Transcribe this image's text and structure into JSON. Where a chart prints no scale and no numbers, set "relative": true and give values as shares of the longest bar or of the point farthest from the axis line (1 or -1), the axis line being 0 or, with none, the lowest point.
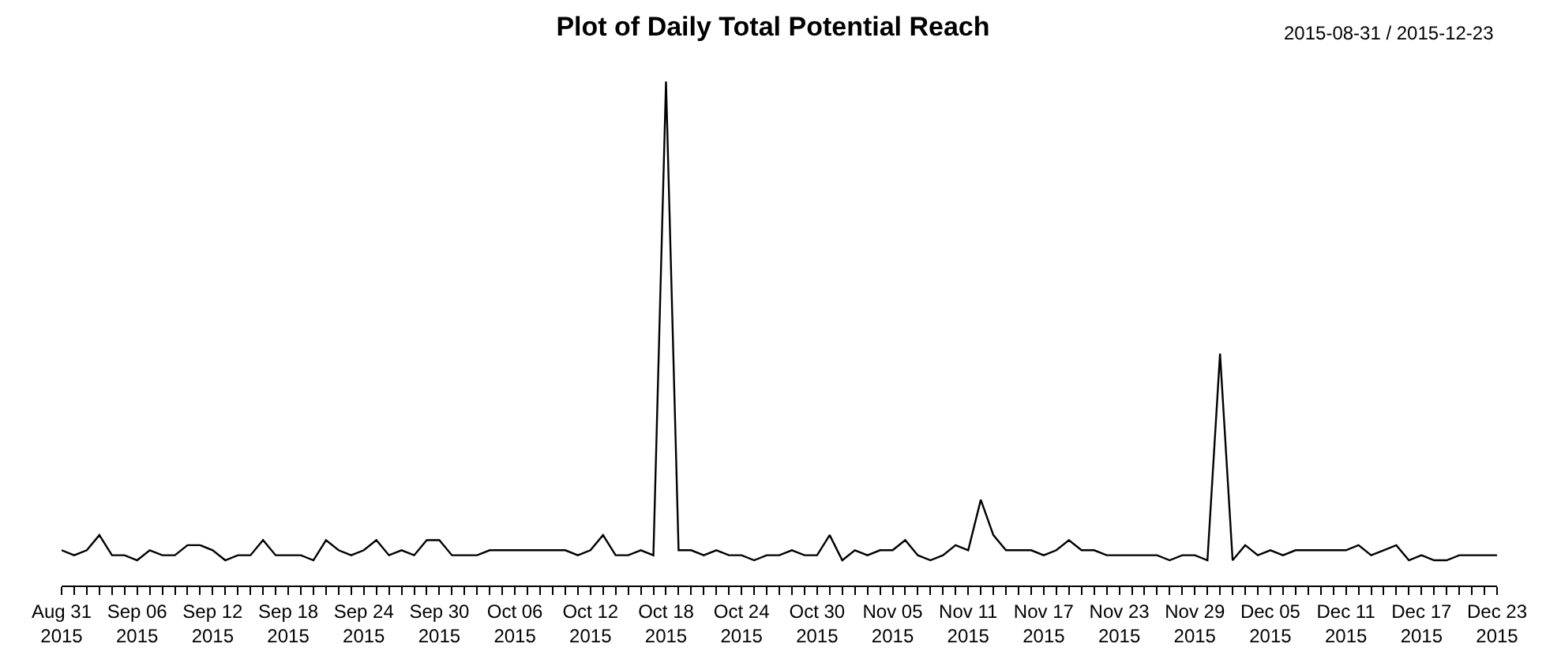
{
  "chart_data": {
    "type": "line",
    "title": "Plot of Daily Total Potential Reach",
    "annotations": [
      "2015-08-31 / 2015-12-23"
    ],
    "relative": true,
    "legend": false,
    "line_style": "solid",
    "marker": "none",
    "x": [
      "2015-08-31",
      "2015-09-01",
      "2015-09-02",
      "2015-09-03",
      "2015-09-04",
      "2015-09-05",
      "2015-09-06",
      "2015-09-07",
      "2015-09-08",
      "2015-09-09",
      "2015-09-10",
      "2015-09-11",
      "2015-09-12",
      "2015-09-13",
      "2015-09-14",
      "2015-09-15",
      "2015-09-16",
      "2015-09-17",
      "2015-09-18",
      "2015-09-19",
      "2015-09-20",
      "2015-09-21",
      "2015-09-22",
      "2015-09-23",
      "2015-09-24",
      "2015-09-25",
      "2015-09-26",
      "2015-09-27",
      "2015-09-28",
      "2015-09-29",
      "2015-09-30",
      "2015-10-01",
      "2015-10-02",
      "2015-10-03",
      "2015-10-04",
      "2015-10-05",
      "2015-10-06",
      "2015-10-07",
      "2015-10-08",
      "2015-10-09",
      "2015-10-10",
      "2015-10-11",
      "2015-10-12",
      "2015-10-13",
      "2015-10-14",
      "2015-10-15",
      "2015-10-16",
      "2015-10-17",
      "2015-10-18",
      "2015-10-19",
      "2015-10-20",
      "2015-10-21",
      "2015-10-22",
      "2015-10-23",
      "2015-10-24",
      "2015-10-25",
      "2015-10-26",
      "2015-10-27",
      "2015-10-28",
      "2015-10-29",
      "2015-10-30",
      "2015-10-31",
      "2015-11-01",
      "2015-11-02",
      "2015-11-03",
      "2015-11-04",
      "2015-11-05",
      "2015-11-06",
      "2015-11-07",
      "2015-11-08",
      "2015-11-09",
      "2015-11-10",
      "2015-11-11",
      "2015-11-12",
      "2015-11-13",
      "2015-11-14",
      "2015-11-15",
      "2015-11-16",
      "2015-11-17",
      "2015-11-18",
      "2015-11-19",
      "2015-11-20",
      "2015-11-21",
      "2015-11-22",
      "2015-11-23",
      "2015-11-24",
      "2015-11-25",
      "2015-11-26",
      "2015-11-27",
      "2015-11-28",
      "2015-11-29",
      "2015-11-30",
      "2015-12-01",
      "2015-12-02",
      "2015-12-03",
      "2015-12-04",
      "2015-12-05",
      "2015-12-06",
      "2015-12-07",
      "2015-12-08",
      "2015-12-09",
      "2015-12-10",
      "2015-12-11",
      "2015-12-12",
      "2015-12-13",
      "2015-12-14",
      "2015-12-15",
      "2015-12-16",
      "2015-12-17",
      "2015-12-18",
      "2015-12-19",
      "2015-12-20",
      "2015-12-21",
      "2015-12-22",
      "2015-12-23"
    ],
    "series": [
      {
        "color": "#000000",
        "values": [
          0.07,
          0.06,
          0.07,
          0.1,
          0.06,
          0.06,
          0.05,
          0.07,
          0.06,
          0.06,
          0.08,
          0.08,
          0.07,
          0.05,
          0.06,
          0.06,
          0.09,
          0.06,
          0.06,
          0.06,
          0.05,
          0.09,
          0.07,
          0.06,
          0.07,
          0.09,
          0.06,
          0.07,
          0.06,
          0.09,
          0.09,
          0.06,
          0.06,
          0.06,
          0.07,
          0.07,
          0.07,
          0.07,
          0.07,
          0.07,
          0.07,
          0.06,
          0.07,
          0.1,
          0.06,
          0.06,
          0.07,
          0.06,
          1,
          0.07,
          0.07,
          0.06,
          0.07,
          0.06,
          0.06,
          0.05,
          0.06,
          0.06,
          0.07,
          0.06,
          0.06,
          0.1,
          0.05,
          0.07,
          0.06,
          0.07,
          0.07,
          0.09,
          0.06,
          0.05,
          0.06,
          0.08,
          0.07,
          0.17,
          0.1,
          0.07,
          0.07,
          0.07,
          0.06,
          0.07,
          0.09,
          0.07,
          0.07,
          0.06,
          0.06,
          0.06,
          0.06,
          0.06,
          0.05,
          0.06,
          0.06,
          0.05,
          0.46,
          0.05,
          0.08,
          0.06,
          0.07,
          0.06,
          0.07,
          0.07,
          0.07,
          0.07,
          0.07,
          0.08,
          0.06,
          0.07,
          0.08,
          0.05,
          0.06,
          0.05,
          0.05,
          0.06,
          0.06,
          0.06,
          0.06
        ]
      }
    ],
    "xlim": [
      "2015-08-31",
      "2015-12-23"
    ],
    "xticks": [
      {
        "value": "2015-08-31",
        "label": "Aug 31\n2015"
      },
      {
        "value": "2015-09-06",
        "label": "Sep 06\n2015"
      },
      {
        "value": "2015-09-12",
        "label": "Sep 12\n2015"
      },
      {
        "value": "2015-09-18",
        "label": "Sep 18\n2015"
      },
      {
        "value": "2015-09-24",
        "label": "Sep 24\n2015"
      },
      {
        "value": "2015-09-30",
        "label": "Sep 30\n2015"
      },
      {
        "value": "2015-10-06",
        "label": "Oct 06\n2015"
      },
      {
        "value": "2015-10-12",
        "label": "Oct 12\n2015"
      },
      {
        "value": "2015-10-18",
        "label": "Oct 18\n2015"
      },
      {
        "value": "2015-10-24",
        "label": "Oct 24\n2015"
      },
      {
        "value": "2015-10-30",
        "label": "Oct 30\n2015"
      },
      {
        "value": "2015-11-05",
        "label": "Nov 05\n2015"
      },
      {
        "value": "2015-11-11",
        "label": "Nov 11\n2015"
      },
      {
        "value": "2015-11-17",
        "label": "Nov 17\n2015"
      },
      {
        "value": "2015-11-23",
        "label": "Nov 23\n2015"
      },
      {
        "value": "2015-11-29",
        "label": "Nov 29\n2015"
      },
      {
        "value": "2015-12-05",
        "label": "Dec 05\n2015"
      },
      {
        "value": "2015-12-11",
        "label": "Dec 11\n2015"
      },
      {
        "value": "2015-12-17",
        "label": "Dec 17\n2015"
      },
      {
        "value": "2015-12-23",
        "label": "Dec 23\n2015"
      }
    ],
    "grid": false
  }
}
